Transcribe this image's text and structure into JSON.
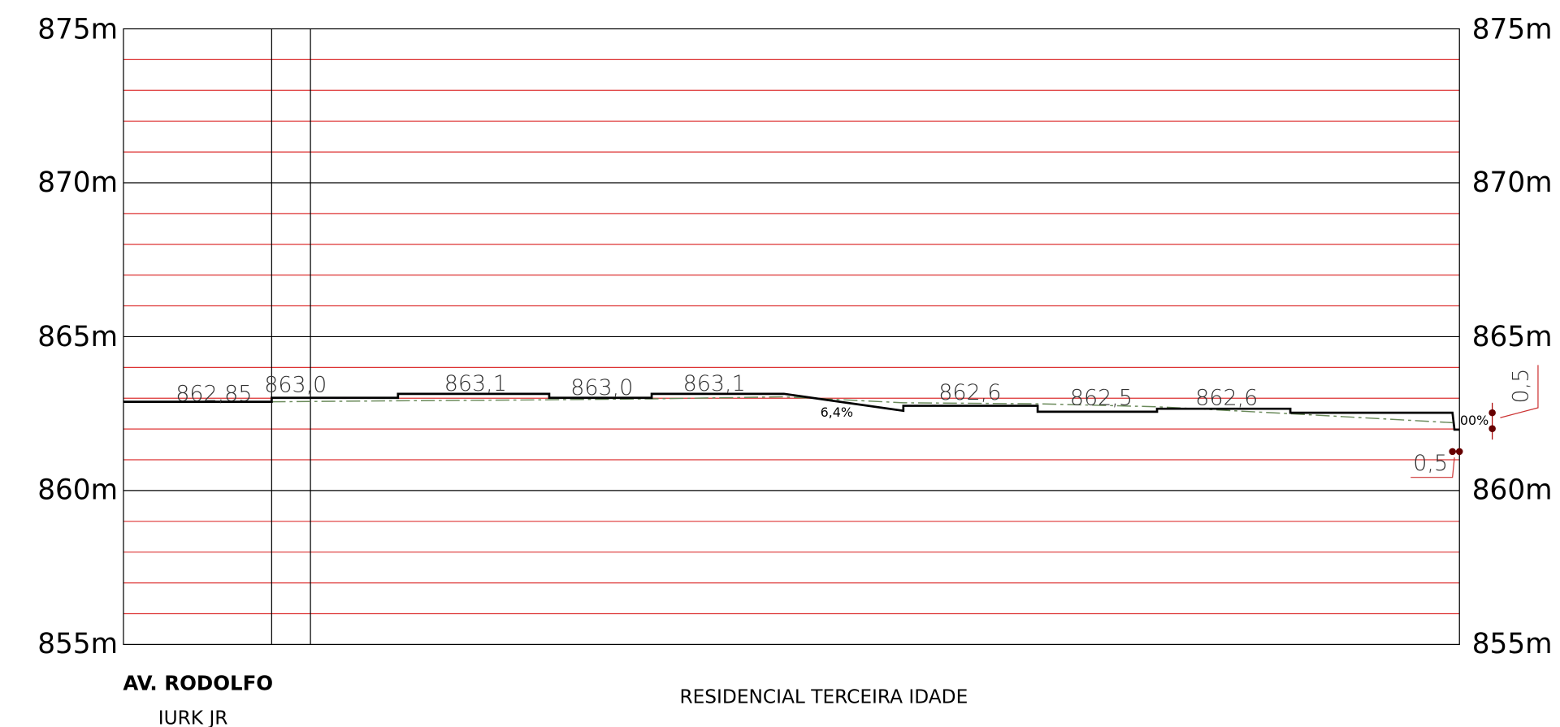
{
  "axis_labels": [
    "875m",
    "870m",
    "865m",
    "860m",
    "855m"
  ],
  "elevation_labels": [
    "862,85",
    "863,0",
    "863,1",
    "863,0",
    "863,1",
    "862,6",
    "862,5",
    "862,6"
  ],
  "slope_labels": [
    "6,4%",
    "00%"
  ],
  "dimension_labels": [
    "0,5",
    "0,5"
  ],
  "street": {
    "name": "AV. RODOLFO",
    "name_line2": "IURK JR"
  },
  "site_label": "RESIDENCIAL TERCEIRA IDADE"
}
